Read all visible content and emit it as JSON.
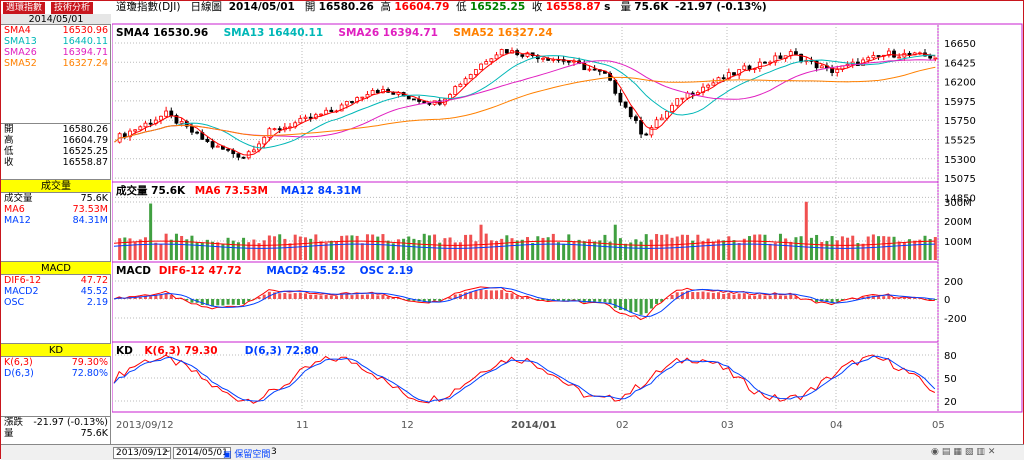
{
  "tabs": [
    "週環指數",
    "技術分析"
  ],
  "header": {
    "date": "2014/05/01",
    "name": "道瓊指數(DJI)",
    "period": "日線圖",
    "date_value": "2014/05/01",
    "open_label": "開",
    "open": "16580.26",
    "high_label": "高",
    "high": "16604.79",
    "low_label": "低",
    "low": "16525.25",
    "close_label": "收",
    "close": "16558.87",
    "close_suffix": "s",
    "vol_label": "量",
    "vol": "75.6K",
    "change": "-21.97 (-0.13%)"
  },
  "left": {
    "date": "2014/05/01",
    "sma": [
      {
        "label": "SMA4",
        "value": "16530.96",
        "color": "#ff0000"
      },
      {
        "label": "SMA13",
        "value": "16440.11",
        "color": "#00b7b7"
      },
      {
        "label": "SMA26",
        "value": "16394.71",
        "color": "#e020c0"
      },
      {
        "label": "SMA52",
        "value": "16327.24",
        "color": "#ff8000"
      }
    ],
    "ohlc": [
      {
        "label": "開",
        "value": "16580.26"
      },
      {
        "label": "高",
        "value": "16604.79"
      },
      {
        "label": "低",
        "value": "16525.25"
      },
      {
        "label": "收",
        "value": "16558.87"
      }
    ],
    "vol_header": "成交量",
    "vol": [
      {
        "label": "成交量",
        "value": "75.6K",
        "color": "#000000"
      },
      {
        "label": "MA6",
        "value": "73.53M",
        "color": "#ff0000"
      },
      {
        "label": "MA12",
        "value": "84.31M",
        "color": "#0040ff"
      }
    ],
    "macd_header": "MACD",
    "macd": [
      {
        "label": "DIF6-12",
        "value": "47.72",
        "color": "#ff0000"
      },
      {
        "label": "MACD2",
        "value": "45.52",
        "color": "#0040ff"
      },
      {
        "label": "OSC",
        "value": "2.19",
        "color": "#0040ff"
      }
    ],
    "kd_header": "KD",
    "kd": [
      {
        "label": "K(6,3)",
        "value": "79.30%",
        "color": "#ff0000"
      },
      {
        "label": "D(6,3)",
        "value": "72.80%",
        "color": "#0040ff"
      }
    ],
    "chg_label": "漲跌",
    "chg_value": "-21.97 (-0.13%)",
    "q_label": "量",
    "q_value": "75.6K"
  },
  "panes": {
    "price": {
      "items": [
        {
          "label": "SMA4 16530.96",
          "color": "#000000"
        },
        {
          "label": "SMA13 16440.11",
          "color": "#00b7b7"
        },
        {
          "label": "SMA26 16394.71",
          "color": "#e020c0"
        },
        {
          "label": "SMA52 16327.24",
          "color": "#ff8000"
        }
      ],
      "ticks": [
        "16650",
        "16425",
        "16200",
        "15975",
        "15750",
        "15525",
        "15300",
        "15075",
        "14850"
      ]
    },
    "volume": {
      "items": [
        {
          "label": "成交量 75.6K",
          "color": "#000000"
        },
        {
          "label": "MA6 73.53M",
          "color": "#ff0000"
        },
        {
          "label": "MA12 84.31M",
          "color": "#0040ff"
        }
      ],
      "ticks": [
        "300M",
        "200M",
        "100M"
      ]
    },
    "macd": {
      "items": [
        {
          "label": "MACD",
          "color": "#000000"
        },
        {
          "label": "DIF6-12 47.72",
          "color": "#ff0000"
        },
        {
          "label": "MACD2 45.52",
          "color": "#0040ff"
        },
        {
          "label": "OSC 2.19",
          "color": "#0040ff"
        }
      ],
      "ticks": [
        "200",
        "0",
        "-200"
      ]
    },
    "kd": {
      "items": [
        {
          "label": "KD",
          "color": "#000000"
        },
        {
          "label": "K(6,3) 79.30",
          "color": "#ff0000"
        },
        {
          "label": "D(6,3) 72.80",
          "color": "#0040ff"
        }
      ],
      "ticks": [
        "80",
        "50",
        "20"
      ]
    }
  },
  "xaxis": {
    "labels": [
      "2013/09/12",
      "11",
      "12",
      "2014/01",
      "02",
      "03",
      "04",
      "05"
    ]
  },
  "bottom": {
    "from": "2013/09/12",
    "tilde": "~",
    "to": "2014/05/01",
    "keep": "保留空間",
    "num": "3"
  },
  "colors": {
    "up": "#ff0000",
    "down": "#000000",
    "grid": "#bbbbbb",
    "frame": "#c81fd0"
  }
}
